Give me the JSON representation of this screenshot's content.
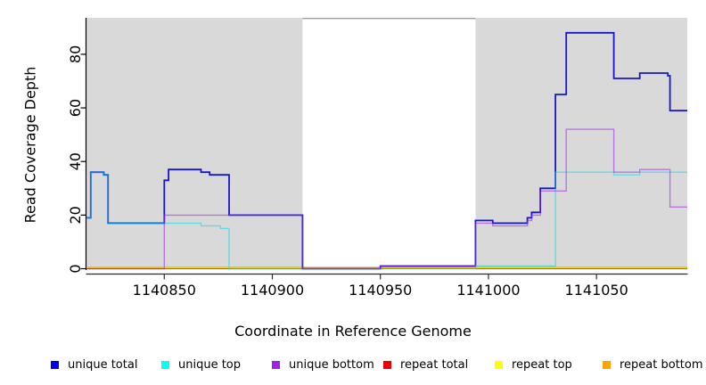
{
  "figure": {
    "background": "#ffffff",
    "plot_background_shaded": "#d9d9d9",
    "axis_color": "#000000"
  },
  "chart_data": {
    "type": "line",
    "subtype": "step-coverage",
    "title": "",
    "xlabel": "Coordinate in Reference Genome",
    "ylabel": "Read Coverage Depth",
    "xlim": [
      1140814,
      1141092
    ],
    "ylim": [
      0,
      93.6
    ],
    "x_ticks": [
      1140850,
      1140900,
      1140950,
      1141000,
      1141050
    ],
    "y_ticks": [
      0,
      20,
      40,
      60,
      80
    ],
    "grid": false,
    "background_regions": [
      {
        "name": "shaded-left",
        "x0": 1140814,
        "x1": 1140914,
        "color": "#d9d9d9"
      },
      {
        "name": "uncovered-gap",
        "x0": 1140914,
        "x1": 1140994,
        "color": "#ffffff"
      },
      {
        "name": "shaded-right",
        "x0": 1140994,
        "x1": 1141092,
        "color": "#d9d9d9"
      }
    ],
    "series": [
      {
        "name": "unique total",
        "color": "#1616d2",
        "width": 1.8,
        "opacity": 1,
        "z": 4,
        "steps": [
          [
            1140814,
            19
          ],
          [
            1140816,
            36
          ],
          [
            1140822,
            35
          ],
          [
            1140824,
            17
          ],
          [
            1140850,
            33
          ],
          [
            1140852,
            37
          ],
          [
            1140867,
            36
          ],
          [
            1140871,
            35
          ],
          [
            1140880,
            20
          ],
          [
            1140914,
            0
          ],
          [
            1140950,
            1
          ],
          [
            1140994,
            18
          ],
          [
            1141002,
            17
          ],
          [
            1141018,
            19
          ],
          [
            1141020,
            21
          ],
          [
            1141024,
            30
          ],
          [
            1141031,
            65
          ],
          [
            1141036,
            88
          ],
          [
            1141058,
            71
          ],
          [
            1141070,
            73
          ],
          [
            1141083,
            72
          ],
          [
            1141084,
            59
          ],
          [
            1141092,
            59
          ]
        ]
      },
      {
        "name": "unique top",
        "color": "#00dcec",
        "width": 1.4,
        "opacity": 0.55,
        "z": 5,
        "steps": [
          [
            1140814,
            19
          ],
          [
            1140816,
            36
          ],
          [
            1140822,
            35
          ],
          [
            1140824,
            17
          ],
          [
            1140867,
            16
          ],
          [
            1140876,
            15
          ],
          [
            1140880,
            0
          ],
          [
            1140994,
            1
          ],
          [
            1141031,
            36
          ],
          [
            1141058,
            35
          ],
          [
            1141070,
            36
          ],
          [
            1141092,
            36
          ]
        ]
      },
      {
        "name": "unique bottom",
        "color": "#a020f0",
        "width": 1.4,
        "opacity": 0.55,
        "z": 6,
        "steps": [
          [
            1140814,
            0
          ],
          [
            1140850,
            20
          ],
          [
            1140914,
            0
          ],
          [
            1140950,
            1
          ],
          [
            1140994,
            17
          ],
          [
            1141002,
            16
          ],
          [
            1141018,
            18
          ],
          [
            1141020,
            20
          ],
          [
            1141024,
            29
          ],
          [
            1141036,
            52
          ],
          [
            1141058,
            36
          ],
          [
            1141070,
            37
          ],
          [
            1141084,
            23
          ],
          [
            1141092,
            23
          ]
        ]
      },
      {
        "name": "repeat total",
        "color": "#e8326e",
        "width": 1.1,
        "opacity": 0.95,
        "z": 3,
        "steps": [
          [
            1140814,
            0
          ],
          [
            1141092,
            0
          ]
        ]
      },
      {
        "name": "repeat top",
        "color": "#ffff00",
        "width": 1.1,
        "opacity": 0.95,
        "z": 2,
        "steps": [
          [
            1140814,
            0
          ],
          [
            1141092,
            0
          ]
        ]
      },
      {
        "name": "repeat bottom",
        "color": "#ffa500",
        "width": 1.6,
        "opacity": 1,
        "z": 1,
        "steps": [
          [
            1140814,
            0
          ],
          [
            1141092,
            0
          ]
        ]
      }
    ],
    "legend": {
      "position": "bottom",
      "entries": [
        {
          "label": "unique total",
          "color": "#0000ee"
        },
        {
          "label": "unique top",
          "color": "#00ffff"
        },
        {
          "label": "unique bottom",
          "color": "#a020f0"
        },
        {
          "label": "repeat total",
          "color": "#ee0000"
        },
        {
          "label": "repeat top",
          "color": "#ffff00"
        },
        {
          "label": "repeat bottom",
          "color": "#ffa500"
        }
      ]
    }
  }
}
